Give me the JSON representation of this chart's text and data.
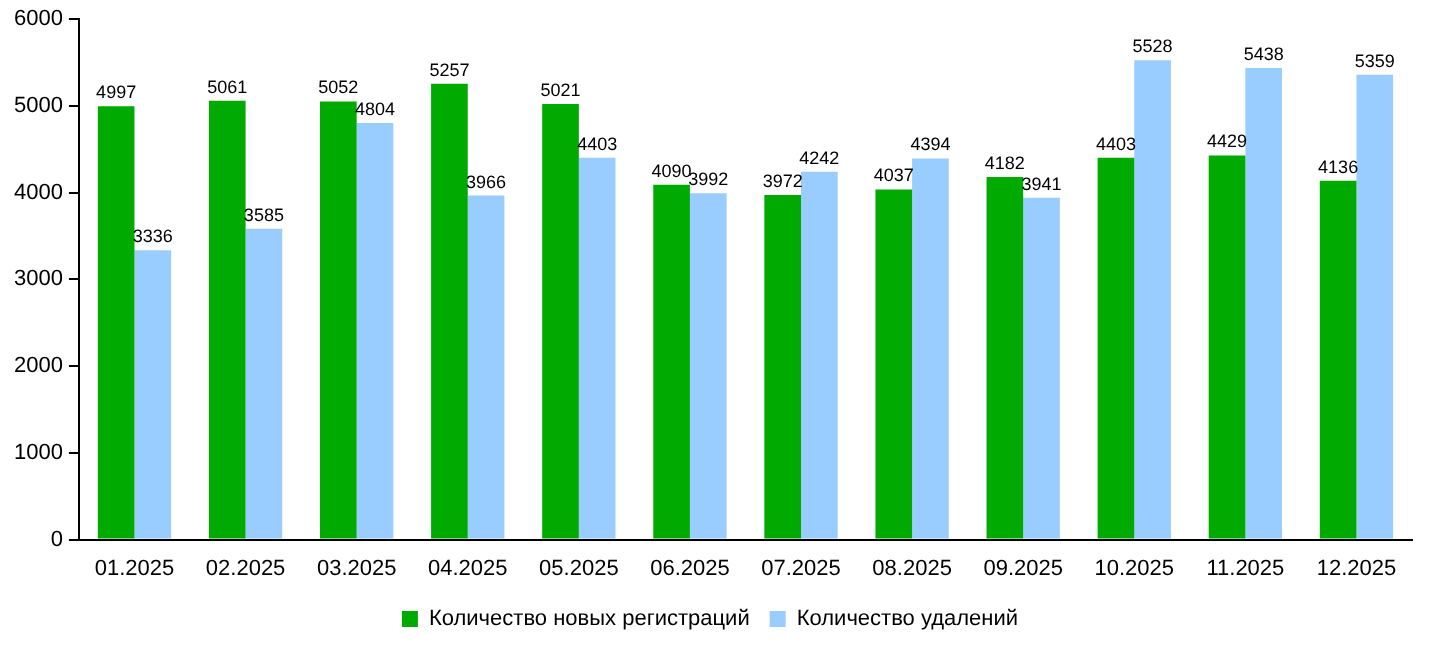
{
  "chart_data": {
    "type": "bar",
    "categories": [
      "01.2025",
      "02.2025",
      "03.2025",
      "04.2025",
      "05.2025",
      "06.2025",
      "07.2025",
      "08.2025",
      "09.2025",
      "10.2025",
      "11.2025",
      "12.2025"
    ],
    "series": [
      {
        "name": "Количество новых регистраций",
        "color": "#00aa00",
        "values": [
          4997,
          5061,
          5052,
          5257,
          5021,
          4090,
          3972,
          4037,
          4182,
          4403,
          4429,
          4136
        ]
      },
      {
        "name": "Количество удалений",
        "color": "#99ccff",
        "values": [
          3336,
          3585,
          4804,
          3966,
          4403,
          3992,
          4242,
          4394,
          3941,
          5528,
          5438,
          5359
        ]
      }
    ],
    "ylim": [
      0,
      6000
    ],
    "yticks": [
      0,
      1000,
      2000,
      3000,
      4000,
      5000,
      6000
    ],
    "grid": false,
    "legend": "bottom",
    "data_labels": true
  }
}
